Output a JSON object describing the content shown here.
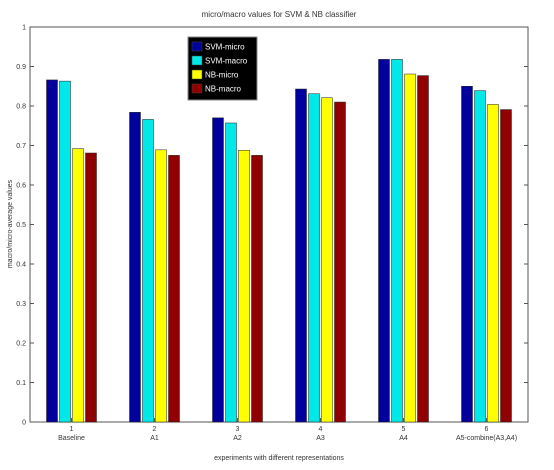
{
  "chart_data": {
    "type": "bar",
    "title": "micro/macro values for SVM & NB classifier",
    "xlabel": "experiments with different representations",
    "ylabel": "macro/micro-average values",
    "ylim": [
      0,
      1
    ],
    "yticks": [
      0,
      0.1,
      0.2,
      0.3,
      0.4,
      0.5,
      0.6,
      0.7,
      0.8,
      0.9,
      1
    ],
    "ytick_labels": [
      "0",
      "0.1",
      "0.2",
      "0.3",
      "0.4",
      "0.5",
      "0.6",
      "0.7",
      "0.8",
      "0.9",
      "1"
    ],
    "categories": [
      "Baseline",
      "A1",
      "A2",
      "A3",
      "A4",
      "A5-combine(A3,A4)"
    ],
    "group_numbers": [
      "1",
      "2",
      "3",
      "4",
      "5",
      "6"
    ],
    "series": [
      {
        "name": "SVM-micro",
        "color": "#00009c",
        "values": [
          0.866,
          0.784,
          0.77,
          0.843,
          0.918,
          0.85
        ]
      },
      {
        "name": "SVM-macro",
        "color": "#00e8e8",
        "values": [
          0.863,
          0.766,
          0.757,
          0.831,
          0.918,
          0.839
        ]
      },
      {
        "name": "NB-micro",
        "color": "#ffff00",
        "values": [
          0.692,
          0.689,
          0.688,
          0.821,
          0.881,
          0.804
        ]
      },
      {
        "name": "NB-macro",
        "color": "#900000",
        "values": [
          0.681,
          0.675,
          0.675,
          0.81,
          0.877,
          0.791
        ]
      }
    ],
    "legend_position": "top-center",
    "grid": false
  }
}
